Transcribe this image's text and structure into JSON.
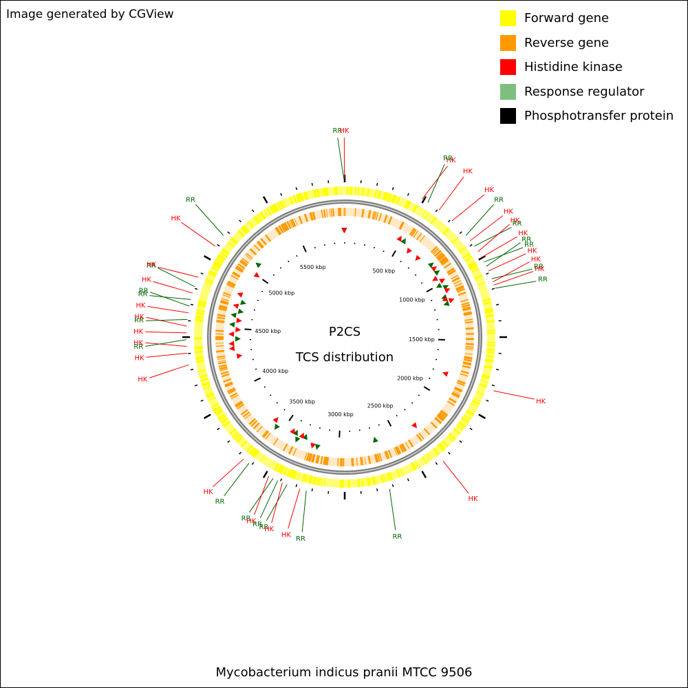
{
  "credit": "Image generated by CGView",
  "organism": "Mycobacterium indicus pranii MTCC 9506",
  "center_title": [
    "P2CS",
    "TCS distribution"
  ],
  "colors": {
    "forward": "#ffff00",
    "reverse": "#ff9900",
    "hk": "#ff0000",
    "rr": "#006600",
    "rr_legend": "#7fbf7b",
    "backbone": "#7f7f7f",
    "ticks": "#000000"
  },
  "legend": [
    {
      "label": "Forward gene",
      "color": "#ffff00"
    },
    {
      "label": "Reverse gene",
      "color": "#ff9900"
    },
    {
      "label": "Histidine kinase",
      "color": "#ff0000"
    },
    {
      "label": "Response regulator",
      "color": "#7fbf7b"
    },
    {
      "label": "Phosphotransfer protein",
      "color": "#000000"
    }
  ],
  "genome": {
    "length_kbp": 5900,
    "tick_labels": [
      "500 kbp",
      "1000 kbp",
      "1500 kbp",
      "2000 kbp",
      "2500 kbp",
      "3000 kbp",
      "3500 kbp",
      "4000 kbp",
      "4500 kbp",
      "5000 kbp",
      "5500 kbp"
    ],
    "tick_values_kbp": [
      500,
      1000,
      1500,
      2000,
      2500,
      3000,
      3500,
      4000,
      4500,
      5000,
      5500
    ]
  },
  "features": [
    {
      "type": "RR",
      "pos_kbp": 5895,
      "strand": "-"
    },
    {
      "type": "HK",
      "pos_kbp": 5898,
      "strand": "-"
    },
    {
      "type": "HK",
      "pos_kbp": 480,
      "strand": "+"
    },
    {
      "type": "RR",
      "pos_kbp": 520,
      "strand": "+"
    },
    {
      "type": "HK",
      "pos_kbp": 600,
      "strand": "-"
    },
    {
      "type": "HK",
      "pos_kbp": 700,
      "strand": "-"
    },
    {
      "type": "RR",
      "pos_kbp": 820,
      "strand": "+"
    },
    {
      "type": "HK",
      "pos_kbp": 860,
      "strand": "+"
    },
    {
      "type": "RR",
      "pos_kbp": 900,
      "strand": "+"
    },
    {
      "type": "HK",
      "pos_kbp": 940,
      "strand": "-"
    },
    {
      "type": "HK",
      "pos_kbp": 980,
      "strand": "+"
    },
    {
      "type": "RR",
      "pos_kbp": 1010,
      "strand": "-"
    },
    {
      "type": "RR",
      "pos_kbp": 1040,
      "strand": "+"
    },
    {
      "type": "HK",
      "pos_kbp": 1070,
      "strand": "+"
    },
    {
      "type": "RR",
      "pos_kbp": 1120,
      "strand": "-"
    },
    {
      "type": "HK",
      "pos_kbp": 1140,
      "strand": "-"
    },
    {
      "type": "HK",
      "pos_kbp": 1160,
      "strand": "+"
    },
    {
      "type": "RR",
      "pos_kbp": 1180,
      "strand": "-"
    },
    {
      "type": "HK",
      "pos_kbp": 1800,
      "strand": "-"
    },
    {
      "type": "HK",
      "pos_kbp": 2320,
      "strand": "+"
    },
    {
      "type": "RR",
      "pos_kbp": 2680,
      "strand": "-"
    },
    {
      "type": "RR",
      "pos_kbp": 3180,
      "strand": "+"
    },
    {
      "type": "HK",
      "pos_kbp": 3220,
      "strand": "+"
    },
    {
      "type": "RR",
      "pos_kbp": 3300,
      "strand": "-"
    },
    {
      "type": "HK",
      "pos_kbp": 3330,
      "strand": "-"
    },
    {
      "type": "RR",
      "pos_kbp": 3360,
      "strand": "+"
    },
    {
      "type": "RR",
      "pos_kbp": 3390,
      "strand": "-"
    },
    {
      "type": "HK",
      "pos_kbp": 3420,
      "strand": "-"
    },
    {
      "type": "RR",
      "pos_kbp": 3560,
      "strand": "+"
    },
    {
      "type": "HK",
      "pos_kbp": 3600,
      "strand": "-"
    },
    {
      "type": "HK",
      "pos_kbp": 4260,
      "strand": "-"
    },
    {
      "type": "HK",
      "pos_kbp": 4330,
      "strand": "+"
    },
    {
      "type": "HK",
      "pos_kbp": 4370,
      "strand": "+"
    },
    {
      "type": "RR",
      "pos_kbp": 4410,
      "strand": "-"
    },
    {
      "type": "HK",
      "pos_kbp": 4450,
      "strand": "+"
    },
    {
      "type": "HK",
      "pos_kbp": 4490,
      "strand": "-"
    },
    {
      "type": "RR",
      "pos_kbp": 4530,
      "strand": "+"
    },
    {
      "type": "HK",
      "pos_kbp": 4570,
      "strand": "-"
    },
    {
      "type": "RR",
      "pos_kbp": 4610,
      "strand": "+"
    },
    {
      "type": "RR",
      "pos_kbp": 4650,
      "strand": "-"
    },
    {
      "type": "HK",
      "pos_kbp": 4690,
      "strand": "+"
    },
    {
      "type": "RR",
      "pos_kbp": 4730,
      "strand": "-"
    },
    {
      "type": "HK",
      "pos_kbp": 4790,
      "strand": "+"
    },
    {
      "type": "HK",
      "pos_kbp": 5000,
      "strand": "-"
    },
    {
      "type": "RR",
      "pos_kbp": 5080,
      "strand": "+"
    }
  ]
}
